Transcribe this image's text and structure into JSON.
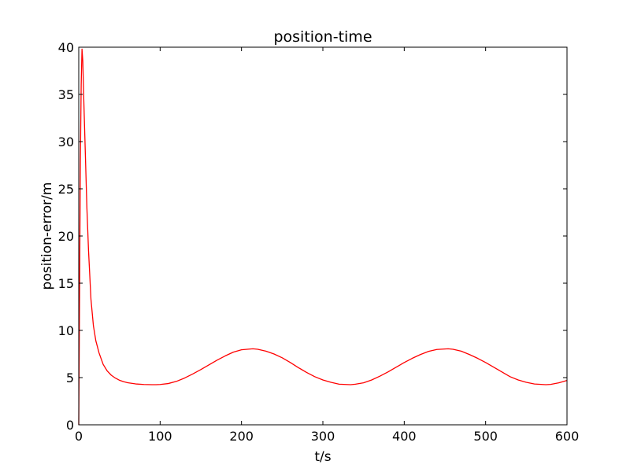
{
  "chart_data": {
    "type": "line",
    "title": "position-time",
    "xlabel": "t/s",
    "ylabel": "position-error/m",
    "xlim": [
      0,
      600
    ],
    "ylim": [
      0,
      40
    ],
    "xticks": [
      0,
      100,
      200,
      300,
      400,
      500,
      600
    ],
    "yticks": [
      0,
      5,
      10,
      15,
      20,
      25,
      30,
      35,
      40
    ],
    "grid": false,
    "line_color": "#ff0000",
    "series": [
      {
        "x": [
          0,
          1,
          2,
          3,
          4,
          5,
          6,
          8,
          10,
          12,
          15,
          18,
          21,
          25,
          30,
          35,
          40,
          45,
          50,
          55,
          60,
          70,
          80,
          90,
          95,
          100,
          110,
          120,
          130,
          140,
          150,
          160,
          170,
          180,
          190,
          200,
          214,
          220,
          230,
          240,
          250,
          260,
          270,
          280,
          290,
          300,
          310,
          320,
          334,
          340,
          350,
          360,
          370,
          380,
          390,
          400,
          410,
          420,
          430,
          440,
          454,
          460,
          470,
          480,
          490,
          500,
          510,
          520,
          530,
          540,
          550,
          560,
          574,
          580,
          590,
          600
        ],
        "y": [
          0,
          14.0,
          28.0,
          36.0,
          39.8,
          38.5,
          35.0,
          29.0,
          23.0,
          18.5,
          13.3,
          10.5,
          8.9,
          7.6,
          6.4,
          5.7,
          5.25,
          4.95,
          4.72,
          4.57,
          4.46,
          4.33,
          4.27,
          4.25,
          4.25,
          4.27,
          4.37,
          4.6,
          4.95,
          5.38,
          5.85,
          6.35,
          6.85,
          7.3,
          7.7,
          7.95,
          8.05,
          8.0,
          7.8,
          7.5,
          7.1,
          6.6,
          6.05,
          5.55,
          5.1,
          4.75,
          4.5,
          4.3,
          4.25,
          4.3,
          4.45,
          4.75,
          5.15,
          5.6,
          6.1,
          6.6,
          7.05,
          7.45,
          7.78,
          7.98,
          8.05,
          8.0,
          7.8,
          7.45,
          7.05,
          6.6,
          6.1,
          5.6,
          5.1,
          4.75,
          4.5,
          4.32,
          4.25,
          4.28,
          4.45,
          4.7
        ]
      }
    ]
  }
}
